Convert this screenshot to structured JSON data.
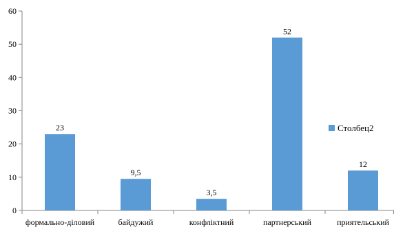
{
  "chart_data": {
    "type": "bar",
    "title": "",
    "xlabel": "",
    "ylabel": "",
    "categories": [
      "формально-діловий",
      "байдужий",
      "конфліктний",
      "партнерський",
      "приятельський"
    ],
    "series": [
      {
        "name": "Столбец2",
        "values": [
          23,
          9.5,
          3.5,
          52,
          12
        ],
        "labels": [
          "23",
          "9,5",
          "3,5",
          "52",
          "12"
        ],
        "color": "#5b9bd5"
      }
    ],
    "ylim": [
      0,
      60
    ],
    "yticks": [
      0,
      10,
      20,
      30,
      40,
      50,
      60
    ],
    "grid": false,
    "legend_position": "right",
    "axis_color": "#868686"
  }
}
